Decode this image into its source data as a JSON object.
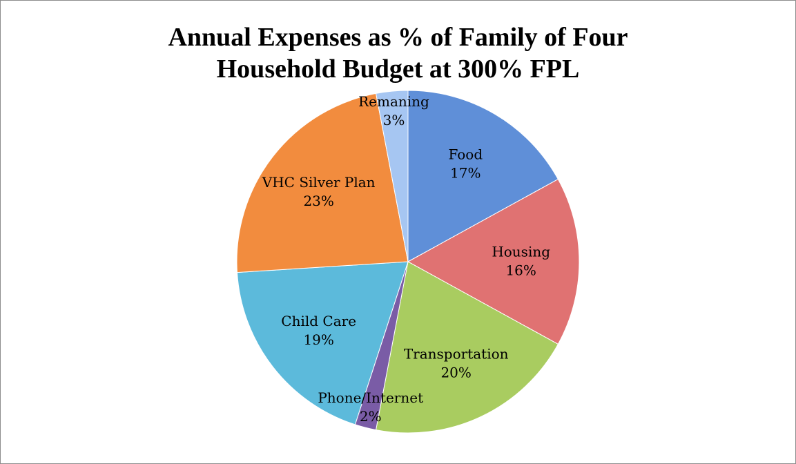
{
  "chart_data": {
    "type": "pie",
    "title": "Annual Expenses as % of Family of Four Household Budget at 300% FPL",
    "categories": [
      "Food",
      "Housing",
      "Transportation",
      "Phone/Internet",
      "Child Care",
      "VHC Silver Plan",
      "Remaning"
    ],
    "values": [
      17,
      16,
      20,
      2,
      19,
      23,
      3
    ],
    "value_labels": [
      "17%",
      "16%",
      "20%",
      "2%",
      "19%",
      "23%",
      "3%"
    ],
    "colors": [
      "#5f8fd8",
      "#e07272",
      "#a9cc60",
      "#7a5ca6",
      "#5cbadb",
      "#f28c3e",
      "#a6c6f2"
    ]
  }
}
